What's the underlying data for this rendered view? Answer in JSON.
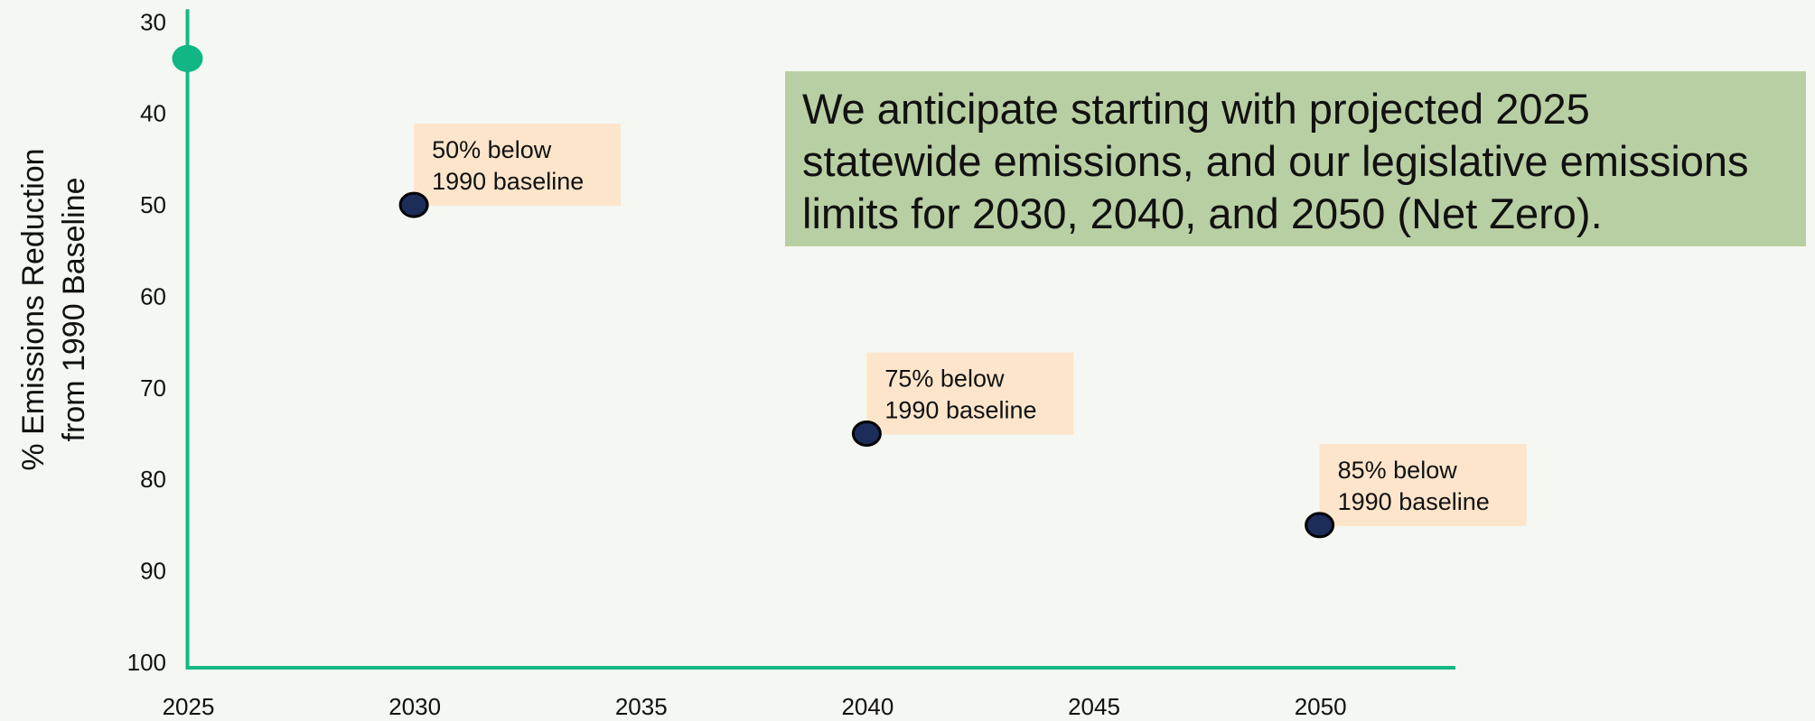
{
  "chart_data": {
    "type": "scatter",
    "ylabel": [
      "% Emissions Reduction",
      "from 1990 Baseline"
    ],
    "x": [
      2025,
      2030,
      2040,
      2050
    ],
    "values": [
      34,
      50,
      75,
      85
    ],
    "point_colors": [
      "#10b784",
      "#1c2d5a",
      "#1c2d5a",
      "#1c2d5a"
    ],
    "annotations": [
      null,
      [
        "50% below",
        "1990 baseline"
      ],
      [
        "75% below",
        "1990 baseline"
      ],
      [
        "85% below",
        "1990 baseline"
      ]
    ],
    "note": [
      "We anticipate starting with projected 2025",
      "statewide emissions, and our legislative emissions",
      "limits for 2030, 2040, and 2050 (Net Zero)."
    ],
    "xlim": [
      2025,
      2053
    ],
    "xticks": [
      2025,
      2030,
      2035,
      2040,
      2045,
      2050
    ],
    "ylim": [
      30,
      100
    ],
    "yticks": [
      30,
      40,
      50,
      60,
      70,
      80,
      90,
      100
    ],
    "y_inverted": true,
    "axis_color": "#14b887"
  }
}
